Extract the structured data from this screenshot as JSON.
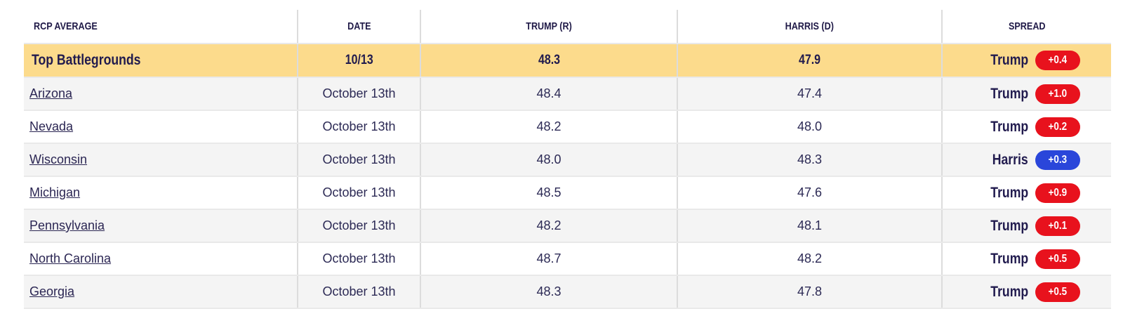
{
  "table": {
    "headers": {
      "average": "RCP AVERAGE",
      "date": "DATE",
      "trump": "TRUMP (R)",
      "harris": "HARRIS (D)",
      "spread": "SPREAD"
    },
    "summary": {
      "label": "Top Battlegrounds",
      "date": "10/13",
      "trump": "48.3",
      "harris": "47.9",
      "spread_leader": "Trump",
      "spread_value": "+0.4"
    },
    "rows": [
      {
        "state": "Arizona",
        "date": "October 13th",
        "trump": "48.4",
        "harris": "47.4",
        "spread_leader": "Trump",
        "spread_value": "+1.0"
      },
      {
        "state": "Nevada",
        "date": "October 13th",
        "trump": "48.2",
        "harris": "48.0",
        "spread_leader": "Trump",
        "spread_value": "+0.2"
      },
      {
        "state": "Wisconsin",
        "date": "October 13th",
        "trump": "48.0",
        "harris": "48.3",
        "spread_leader": "Harris",
        "spread_value": "+0.3"
      },
      {
        "state": "Michigan",
        "date": "October 13th",
        "trump": "48.5",
        "harris": "47.6",
        "spread_leader": "Trump",
        "spread_value": "+0.9"
      },
      {
        "state": "Pennsylvania",
        "date": "October 13th",
        "trump": "48.2",
        "harris": "48.1",
        "spread_leader": "Trump",
        "spread_value": "+0.1"
      },
      {
        "state": "North Carolina",
        "date": "October 13th",
        "trump": "48.7",
        "harris": "48.2",
        "spread_leader": "Trump",
        "spread_value": "+0.5"
      },
      {
        "state": "Georgia",
        "date": "October 13th",
        "trump": "48.3",
        "harris": "47.8",
        "spread_leader": "Trump",
        "spread_value": "+0.5"
      }
    ],
    "colors": {
      "highlight_yellow": "#fcdb8c",
      "trump_red": "#e8121d",
      "harris_blue": "#2a46da",
      "text_navy": "#211b4e",
      "alt_row_gray": "#f4f4f4"
    }
  }
}
